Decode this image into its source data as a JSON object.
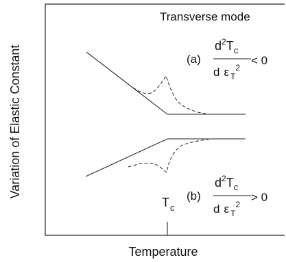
{
  "diagram": {
    "title": "Transverse mode",
    "xlabel": "Temperature",
    "ylabel": "Variation of Elastic Constant",
    "tc_label": "Tc",
    "case_a": {
      "label": "(a)",
      "numerator_d": "d",
      "numerator_sup": "2",
      "numerator_T": "T",
      "numerator_sub": "c",
      "denominator_d": "d",
      "denominator_eps": "ε",
      "denominator_sub": "T",
      "denominator_sup": "2",
      "relation": "< 0"
    },
    "case_b": {
      "label": "(b)",
      "numerator_d": "d",
      "numerator_sup": "2",
      "numerator_T": "T",
      "numerator_sub": "c",
      "denominator_d": "d",
      "denominator_eps": "ε",
      "denominator_sub": "T",
      "denominator_sup": "2",
      "relation": "> 0"
    }
  }
}
